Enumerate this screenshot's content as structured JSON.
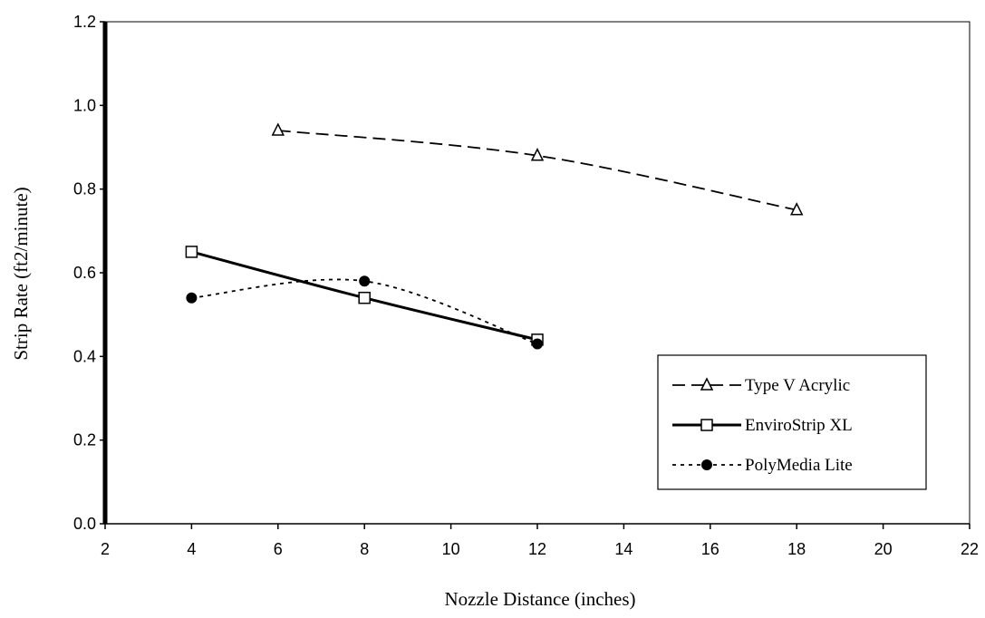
{
  "chart_data": {
    "type": "line",
    "title": "",
    "xlabel": "Nozzle Distance (inches)",
    "ylabel": "Strip Rate (ft2/minute)",
    "xlim": [
      2,
      22
    ],
    "ylim": [
      0,
      1.2
    ],
    "x_ticks": [
      "2",
      "4",
      "6",
      "8",
      "10",
      "12",
      "14",
      "16",
      "18",
      "20",
      "22"
    ],
    "y_ticks": [
      "0.0",
      "0.2",
      "0.4",
      "0.6",
      "0.8",
      "1.0",
      "1.2"
    ],
    "grid": false,
    "legend_position": "bottom-right",
    "series": [
      {
        "name": "Type V Acrylic",
        "x": [
          6,
          12,
          18
        ],
        "y": [
          0.94,
          0.88,
          0.75
        ],
        "line_style": "dashed",
        "marker": "open-triangle",
        "color": "#000000"
      },
      {
        "name": "EnviroStrip XL",
        "x": [
          4,
          8,
          12
        ],
        "y": [
          0.65,
          0.54,
          0.44
        ],
        "line_style": "solid",
        "marker": "open-square",
        "color": "#000000"
      },
      {
        "name": "PolyMedia Lite",
        "x": [
          4,
          8,
          12
        ],
        "y": [
          0.54,
          0.58,
          0.43
        ],
        "line_style": "dotted",
        "marker": "filled-circle",
        "color": "#000000"
      }
    ]
  }
}
